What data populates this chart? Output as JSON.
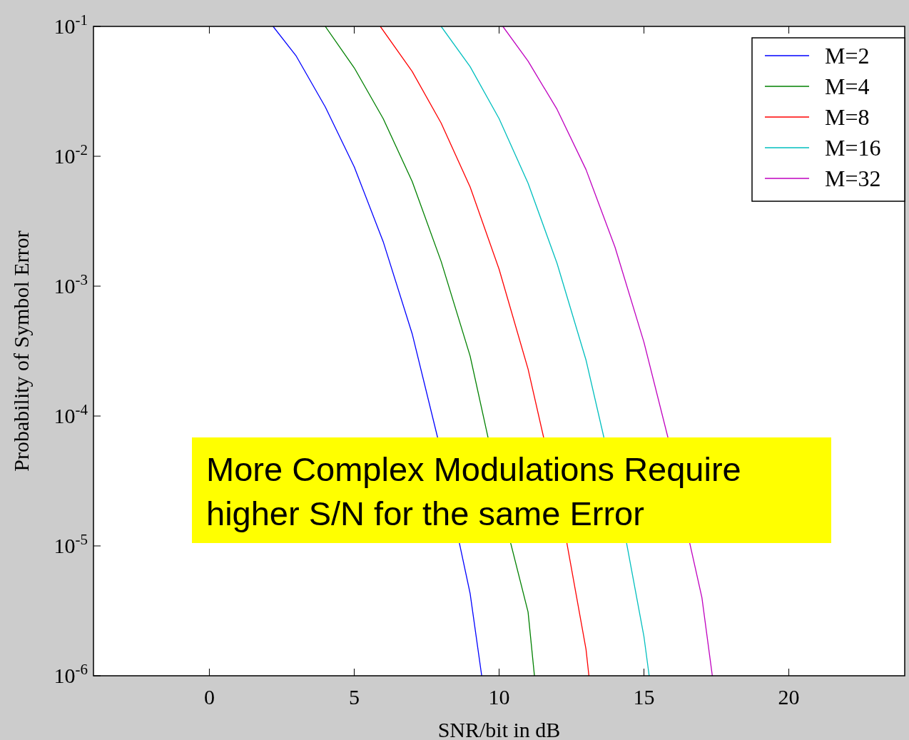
{
  "chart_data": {
    "type": "line",
    "xlabel": "SNR/bit in dB",
    "ylabel": "Probability of Symbol Error",
    "annotations": [
      "More Complex Modulations Require higher S/N for the same Error"
    ],
    "log": "y",
    "grid": false,
    "legend": "top right",
    "marker": "none",
    "line_style": "solid",
    "xlim": [
      -4,
      24
    ],
    "xticks": [
      0,
      5,
      10,
      15,
      20
    ],
    "ylim": [
      1e-06,
      0.1
    ],
    "yticks": [
      {
        "value": 1e-06,
        "label": "10$^{-6}$"
      },
      {
        "value": 1e-05,
        "label": "10$^{-5}$"
      },
      {
        "value": 0.0001,
        "label": "10$^{-4}$"
      },
      {
        "value": 0.001,
        "label": "10$^{-3}$"
      },
      {
        "value": 0.01,
        "label": "10$^{-2}$"
      },
      {
        "value": 0.1,
        "label": "10$^{-1}$"
      }
    ],
    "series": [
      {
        "name": "M=2",
        "color": "#0000ff",
        "x": [
          2.2,
          3,
          4,
          5,
          6,
          7,
          7.88,
          8.63,
          9,
          9.4
        ],
        "values": [
          0.1,
          0.059,
          0.024,
          0.0083,
          0.0022,
          0.00043,
          6.8e-05,
          1.05e-05,
          4.3e-06,
          1e-06
        ]
      },
      {
        "name": "M=4",
        "color": "#008000",
        "x": [
          4,
          5,
          6,
          7,
          8,
          9,
          9.62,
          10.4,
          11,
          11.22
        ],
        "values": [
          0.1,
          0.048,
          0.0195,
          0.0064,
          0.00155,
          0.00029,
          6.8e-05,
          1.05e-05,
          3.1e-06,
          1e-06
        ]
      },
      {
        "name": "M=8",
        "color": "#ff0000",
        "x": [
          5.9,
          7,
          8,
          9,
          10,
          11,
          11.54,
          12.34,
          13,
          13.1
        ],
        "values": [
          0.1,
          0.045,
          0.018,
          0.0058,
          0.00135,
          0.00023,
          6.8e-05,
          1.05e-05,
          1.6e-06,
          1e-06
        ]
      },
      {
        "name": "M=16",
        "color": "#00bfbf",
        "x": [
          8,
          9,
          10,
          11,
          12,
          13,
          13.62,
          14.4,
          15,
          15.18
        ],
        "values": [
          0.1,
          0.049,
          0.0195,
          0.0062,
          0.0015,
          0.00027,
          6.8e-05,
          1.05e-05,
          2e-06,
          1e-06
        ]
      },
      {
        "name": "M=32",
        "color": "#bf00bf",
        "x": [
          10.13,
          11,
          12,
          13,
          14,
          15,
          15.83,
          16.58,
          17,
          17.36
        ],
        "values": [
          0.1,
          0.054,
          0.023,
          0.0079,
          0.002,
          0.00037,
          6.8e-05,
          1.05e-05,
          4e-06,
          1e-06
        ]
      }
    ]
  }
}
